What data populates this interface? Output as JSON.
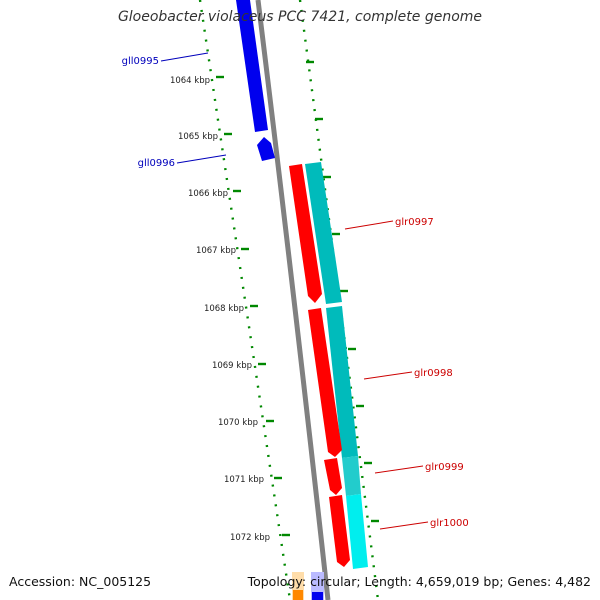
{
  "title": "Gloeobacter violaceus PCC 7421, complete genome",
  "footer": {
    "accession_label": "Accession:",
    "accession": "NC_005125",
    "topology_label": "Topology:",
    "topology": "circular",
    "length_label": "Length:",
    "length": "4,659,019 bp",
    "genes_label": "Genes:",
    "genes": "4,482"
  },
  "map": {
    "ticks": [
      {
        "label": "1064 kbp"
      },
      {
        "label": "1065 kbp"
      },
      {
        "label": "1066 kbp"
      },
      {
        "label": "1067 kbp"
      },
      {
        "label": "1068 kbp"
      },
      {
        "label": "1069 kbp"
      },
      {
        "label": "1070 kbp"
      },
      {
        "label": "1071 kbp"
      },
      {
        "label": "1072 kbp"
      }
    ],
    "genes": [
      {
        "name": "gll0995",
        "strand": "-",
        "color": "#0000ee"
      },
      {
        "name": "gll0996",
        "strand": "-",
        "color": "#0000ee"
      },
      {
        "name": "glr0997",
        "strand": "+",
        "color": "#ff0000"
      },
      {
        "name": "glr0998",
        "strand": "+",
        "color": "#ff0000"
      },
      {
        "name": "glr0999",
        "strand": "+",
        "color": "#ff0000"
      },
      {
        "name": "glr1000",
        "strand": "+",
        "color": "#ff0000"
      }
    ],
    "colors": {
      "minus_strand": "#0000ee",
      "plus_strand": "#ff0000",
      "cds_track": "#00bbbb",
      "cds_track_light": "#00eeee",
      "tick_marks": "#008800",
      "backbone": "#808080",
      "minus_label": "#0000bb",
      "plus_label": "#cc0000"
    }
  }
}
